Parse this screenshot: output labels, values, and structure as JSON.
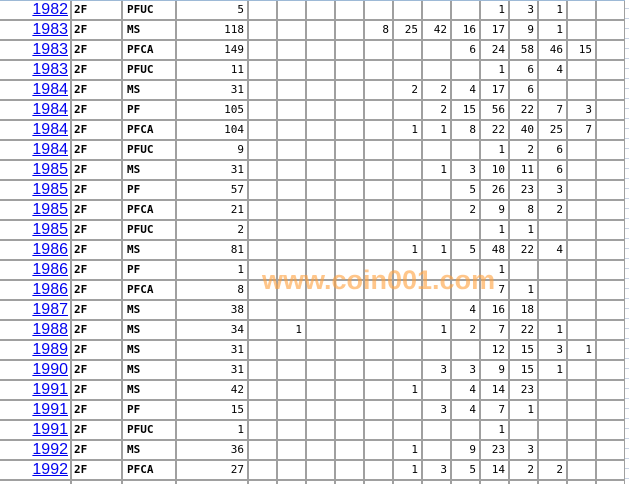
{
  "rows": [
    {
      "year": "1982",
      "code": "2F",
      "type": "PFUC",
      "total": "5",
      "counts": [
        "",
        "",
        "",
        "",
        "",
        "",
        "",
        "",
        "1",
        "3",
        "1",
        "",
        ""
      ]
    },
    {
      "year": "1983",
      "code": "2F",
      "type": "MS",
      "total": "118",
      "counts": [
        "",
        "",
        "",
        "",
        "8",
        "25",
        "42",
        "16",
        "17",
        "9",
        "1",
        "",
        ""
      ]
    },
    {
      "year": "1983",
      "code": "2F",
      "type": "PFCA",
      "total": "149",
      "counts": [
        "",
        "",
        "",
        "",
        "",
        "",
        "",
        "6",
        "24",
        "58",
        "46",
        "15",
        ""
      ]
    },
    {
      "year": "1983",
      "code": "2F",
      "type": "PFUC",
      "total": "11",
      "counts": [
        "",
        "",
        "",
        "",
        "",
        "",
        "",
        "",
        "1",
        "6",
        "4",
        "",
        ""
      ]
    },
    {
      "year": "1984",
      "code": "2F",
      "type": "MS",
      "total": "31",
      "counts": [
        "",
        "",
        "",
        "",
        "",
        "2",
        "2",
        "4",
        "17",
        "6",
        "",
        "",
        ""
      ]
    },
    {
      "year": "1984",
      "code": "2F",
      "type": "PF",
      "total": "105",
      "counts": [
        "",
        "",
        "",
        "",
        "",
        "",
        "2",
        "15",
        "56",
        "22",
        "7",
        "3",
        ""
      ]
    },
    {
      "year": "1984",
      "code": "2F",
      "type": "PFCA",
      "total": "104",
      "counts": [
        "",
        "",
        "",
        "",
        "",
        "1",
        "1",
        "8",
        "22",
        "40",
        "25",
        "7",
        ""
      ]
    },
    {
      "year": "1984",
      "code": "2F",
      "type": "PFUC",
      "total": "9",
      "counts": [
        "",
        "",
        "",
        "",
        "",
        "",
        "",
        "",
        "1",
        "2",
        "6",
        "",
        ""
      ]
    },
    {
      "year": "1985",
      "code": "2F",
      "type": "MS",
      "total": "31",
      "counts": [
        "",
        "",
        "",
        "",
        "",
        "",
        "1",
        "3",
        "10",
        "11",
        "6",
        "",
        ""
      ]
    },
    {
      "year": "1985",
      "code": "2F",
      "type": "PF",
      "total": "57",
      "counts": [
        "",
        "",
        "",
        "",
        "",
        "",
        "",
        "5",
        "26",
        "23",
        "3",
        "",
        ""
      ]
    },
    {
      "year": "1985",
      "code": "2F",
      "type": "PFCA",
      "total": "21",
      "counts": [
        "",
        "",
        "",
        "",
        "",
        "",
        "",
        "2",
        "9",
        "8",
        "2",
        "",
        ""
      ]
    },
    {
      "year": "1985",
      "code": "2F",
      "type": "PFUC",
      "total": "2",
      "counts": [
        "",
        "",
        "",
        "",
        "",
        "",
        "",
        "",
        "1",
        "1",
        "",
        "",
        ""
      ]
    },
    {
      "year": "1986",
      "code": "2F",
      "type": "MS",
      "total": "81",
      "counts": [
        "",
        "",
        "",
        "",
        "",
        "1",
        "1",
        "5",
        "48",
        "22",
        "4",
        "",
        ""
      ]
    },
    {
      "year": "1986",
      "code": "2F",
      "type": "PF",
      "total": "1",
      "counts": [
        "",
        "",
        "",
        "",
        "",
        "",
        "",
        "",
        "1",
        "",
        "",
        "",
        ""
      ]
    },
    {
      "year": "1986",
      "code": "2F",
      "type": "PFCA",
      "total": "8",
      "counts": [
        "",
        "",
        "",
        "",
        "",
        "",
        "",
        "",
        "7",
        "1",
        "",
        "",
        ""
      ]
    },
    {
      "year": "1987",
      "code": "2F",
      "type": "MS",
      "total": "38",
      "counts": [
        "",
        "",
        "",
        "",
        "",
        "",
        "",
        "4",
        "16",
        "18",
        "",
        "",
        ""
      ]
    },
    {
      "year": "1988",
      "code": "2F",
      "type": "MS",
      "total": "34",
      "counts": [
        "",
        "1",
        "",
        "",
        "",
        "",
        "1",
        "2",
        "7",
        "22",
        "1",
        "",
        ""
      ]
    },
    {
      "year": "1989",
      "code": "2F",
      "type": "MS",
      "total": "31",
      "counts": [
        "",
        "",
        "",
        "",
        "",
        "",
        "",
        "",
        "12",
        "15",
        "3",
        "1",
        ""
      ]
    },
    {
      "year": "1990",
      "code": "2F",
      "type": "MS",
      "total": "31",
      "counts": [
        "",
        "",
        "",
        "",
        "",
        "",
        "3",
        "3",
        "9",
        "15",
        "1",
        "",
        ""
      ]
    },
    {
      "year": "1991",
      "code": "2F",
      "type": "MS",
      "total": "42",
      "counts": [
        "",
        "",
        "",
        "",
        "",
        "1",
        "",
        "4",
        "14",
        "23",
        "",
        "",
        ""
      ]
    },
    {
      "year": "1991",
      "code": "2F",
      "type": "PF",
      "total": "15",
      "counts": [
        "",
        "",
        "",
        "",
        "",
        "",
        "3",
        "4",
        "7",
        "1",
        "",
        "",
        ""
      ]
    },
    {
      "year": "1991",
      "code": "2F",
      "type": "PFUC",
      "total": "1",
      "counts": [
        "",
        "",
        "",
        "",
        "",
        "",
        "",
        "",
        "1",
        "",
        "",
        "",
        ""
      ]
    },
    {
      "year": "1992",
      "code": "2F",
      "type": "MS",
      "total": "36",
      "counts": [
        "",
        "",
        "",
        "",
        "",
        "1",
        "",
        "9",
        "23",
        "3",
        "",
        "",
        ""
      ]
    },
    {
      "year": "1992",
      "code": "2F",
      "type": "PFCA",
      "total": "27",
      "counts": [
        "",
        "",
        "",
        "",
        "",
        "1",
        "3",
        "5",
        "14",
        "2",
        "2",
        "",
        ""
      ]
    }
  ],
  "watermark": "www.coin001.com",
  "colors": {
    "link": "#0000ee",
    "grid": "#a0a0a0",
    "watermark": "#ffa03c"
  }
}
